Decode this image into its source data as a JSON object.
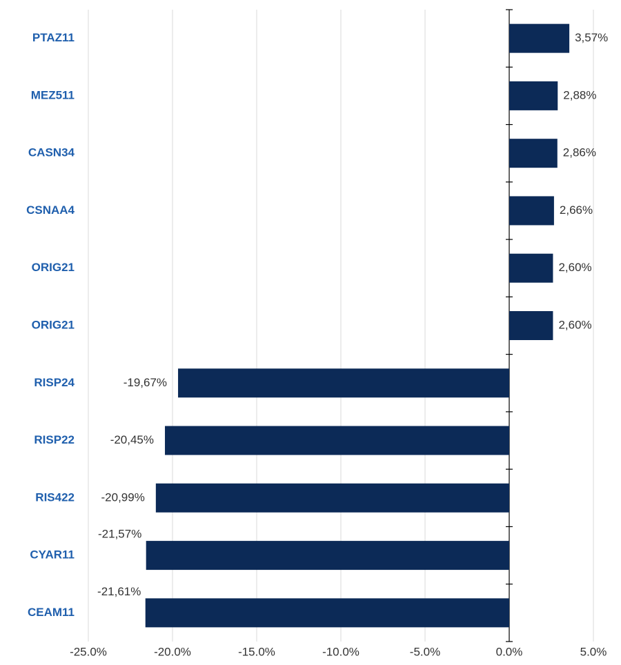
{
  "chart_data": {
    "type": "hbar",
    "categories": [
      "PTAZ11",
      "MEZ511",
      "CASN34",
      "CSNAA4",
      "ORIG21",
      "ORIG21",
      "RISP24",
      "RISP22",
      "RIS422",
      "CYAR11",
      "CEAM11"
    ],
    "values": [
      3.57,
      2.88,
      2.86,
      2.66,
      2.6,
      2.6,
      -19.67,
      -20.45,
      -20.99,
      -21.57,
      -21.61
    ],
    "value_labels": [
      "3,57%",
      "2,88%",
      "2,86%",
      "2,66%",
      "2,60%",
      "2,60%",
      "-19,67%",
      "-20,45%",
      "-20,99%",
      "-21,57%",
      "-21,61%"
    ],
    "color": "#0c2a57",
    "xlim": [
      -25,
      5
    ],
    "xticks": [
      {
        "value": -25,
        "label": "-25.0%"
      },
      {
        "value": -20,
        "label": "-20.0%"
      },
      {
        "value": -15,
        "label": "-15.0%"
      },
      {
        "value": -10,
        "label": "-10.0%"
      },
      {
        "value": -5,
        "label": "-5.0%"
      },
      {
        "value": 0,
        "label": "0.0%"
      },
      {
        "value": 5,
        "label": "5.0%"
      }
    ],
    "grid": true
  }
}
